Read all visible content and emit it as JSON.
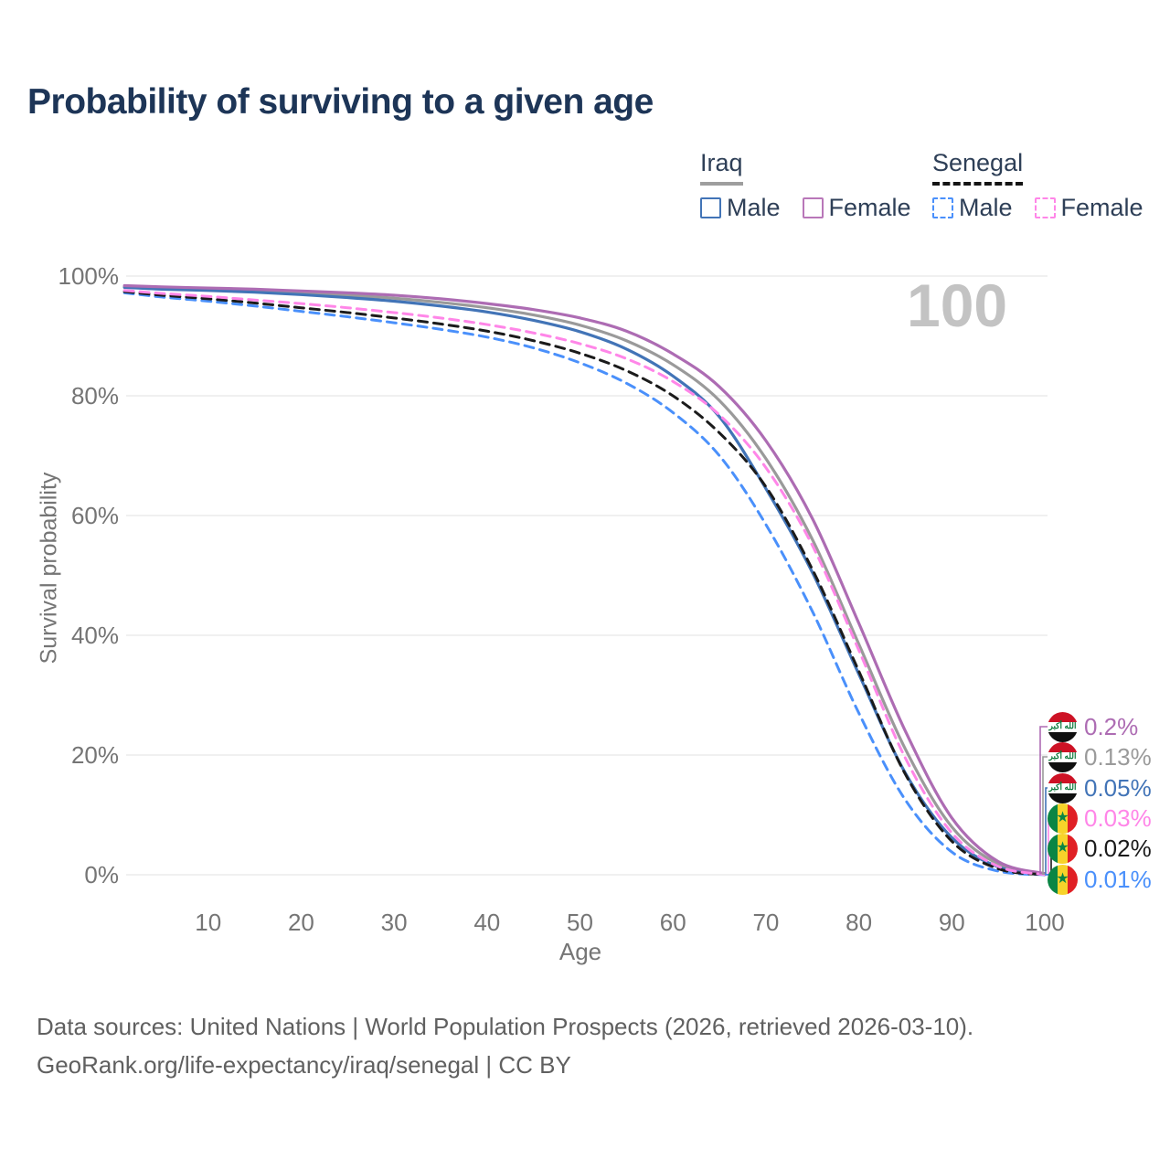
{
  "title": "Probability of surviving to a given age",
  "watermark_age": "100",
  "legend": {
    "groups": [
      {
        "name": "Iraq",
        "underline": "solid",
        "underline_color": "#9e9e9e",
        "items": [
          {
            "label": "Male",
            "color": "#4274b7",
            "line_style": "solid"
          },
          {
            "label": "Female",
            "color": "#b977b9",
            "line_style": "solid"
          }
        ]
      },
      {
        "name": "Senegal",
        "underline": "dashed",
        "underline_color": "#141414",
        "items": [
          {
            "label": "Male",
            "color": "#4a90fb",
            "line_style": "dashed"
          },
          {
            "label": "Female",
            "color": "#ff86e8",
            "line_style": "dashed"
          }
        ]
      }
    ]
  },
  "flags": {
    "iraq_script": "الله أكبر",
    "senegal_star": "★"
  },
  "chart_data": {
    "type": "line",
    "title": "Probability of surviving to a given age",
    "xlabel": "Age",
    "ylabel": "Survival probability",
    "xlim": [
      0,
      100
    ],
    "ylim": [
      0,
      100
    ],
    "grid": "horizontal",
    "legend_position": "top-right",
    "x_ticks": [
      10,
      20,
      30,
      40,
      50,
      60,
      70,
      80,
      90,
      100
    ],
    "y_tick_values": [
      0,
      20,
      40,
      60,
      80,
      100
    ],
    "y_tick_labels": [
      "0%",
      "20%",
      "40%",
      "60%",
      "80%",
      "100%"
    ],
    "hover_age": 100,
    "x": [
      1,
      5,
      10,
      15,
      20,
      25,
      30,
      35,
      40,
      45,
      50,
      55,
      60,
      65,
      70,
      75,
      80,
      85,
      90,
      95,
      100
    ],
    "series": [
      {
        "name": "Iraq Female",
        "country": "Iraq",
        "sex": "Female",
        "color": "#ad6cb3",
        "dash": false,
        "end_label": "0.2%",
        "values": [
          98.4,
          98.2,
          98.0,
          97.8,
          97.5,
          97.2,
          96.8,
          96.2,
          95.4,
          94.4,
          93.0,
          90.8,
          87.0,
          81.5,
          72.5,
          59.5,
          42.0,
          24.0,
          9.5,
          2.2,
          0.2
        ]
      },
      {
        "name": "Iraq Both sexes",
        "country": "Iraq",
        "sex": "Both",
        "color": "#9a9a9a",
        "dash": false,
        "end_label": "0.13%",
        "values": [
          98.2,
          98.0,
          97.8,
          97.5,
          97.2,
          96.8,
          96.3,
          95.6,
          94.7,
          93.5,
          91.8,
          89.2,
          85.2,
          79.2,
          69.5,
          56.0,
          38.5,
          21.0,
          8.0,
          1.8,
          0.13
        ]
      },
      {
        "name": "Iraq Male",
        "country": "Iraq",
        "sex": "Male",
        "color": "#4274b7",
        "dash": false,
        "end_label": "0.05%",
        "values": [
          98.1,
          97.8,
          97.6,
          97.3,
          96.9,
          96.4,
          95.8,
          95.0,
          94.0,
          92.6,
          90.7,
          87.8,
          83.3,
          76.5,
          64.5,
          50.5,
          33.5,
          17.0,
          6.2,
          1.3,
          0.05
        ]
      },
      {
        "name": "Senegal Female",
        "country": "Senegal",
        "sex": "Female",
        "color": "#ff86e8",
        "dash": true,
        "end_label": "0.03%",
        "values": [
          97.6,
          97.1,
          96.6,
          96.0,
          95.4,
          94.7,
          93.9,
          93.0,
          91.9,
          90.5,
          88.7,
          86.2,
          82.4,
          76.8,
          68.0,
          55.0,
          37.5,
          19.5,
          7.0,
          1.4,
          0.03
        ]
      },
      {
        "name": "Senegal Both sexes",
        "country": "Senegal",
        "sex": "Both",
        "color": "#1b1b1b",
        "dash": true,
        "end_label": "0.02%",
        "values": [
          97.4,
          96.8,
          96.2,
          95.5,
          94.7,
          93.9,
          93.0,
          92.0,
          90.8,
          89.2,
          87.1,
          84.2,
          80.0,
          73.8,
          64.8,
          51.0,
          34.0,
          16.8,
          5.6,
          1.0,
          0.02
        ]
      },
      {
        "name": "Senegal Male",
        "country": "Senegal",
        "sex": "Male",
        "color": "#4a90fb",
        "dash": true,
        "end_label": "0.01%",
        "values": [
          97.2,
          96.5,
          95.8,
          95.0,
          94.1,
          93.2,
          92.2,
          91.1,
          89.8,
          88.0,
          85.5,
          82.1,
          77.2,
          70.0,
          58.5,
          44.0,
          27.0,
          12.5,
          3.8,
          0.6,
          0.01
        ]
      }
    ]
  },
  "footer": {
    "line1": "Data sources: United Nations | World Population Prospects (2026, retrieved 2026-03-10).",
    "line2": "GeoRank.org/life-expectancy/iraq/senegal | CC BY"
  }
}
